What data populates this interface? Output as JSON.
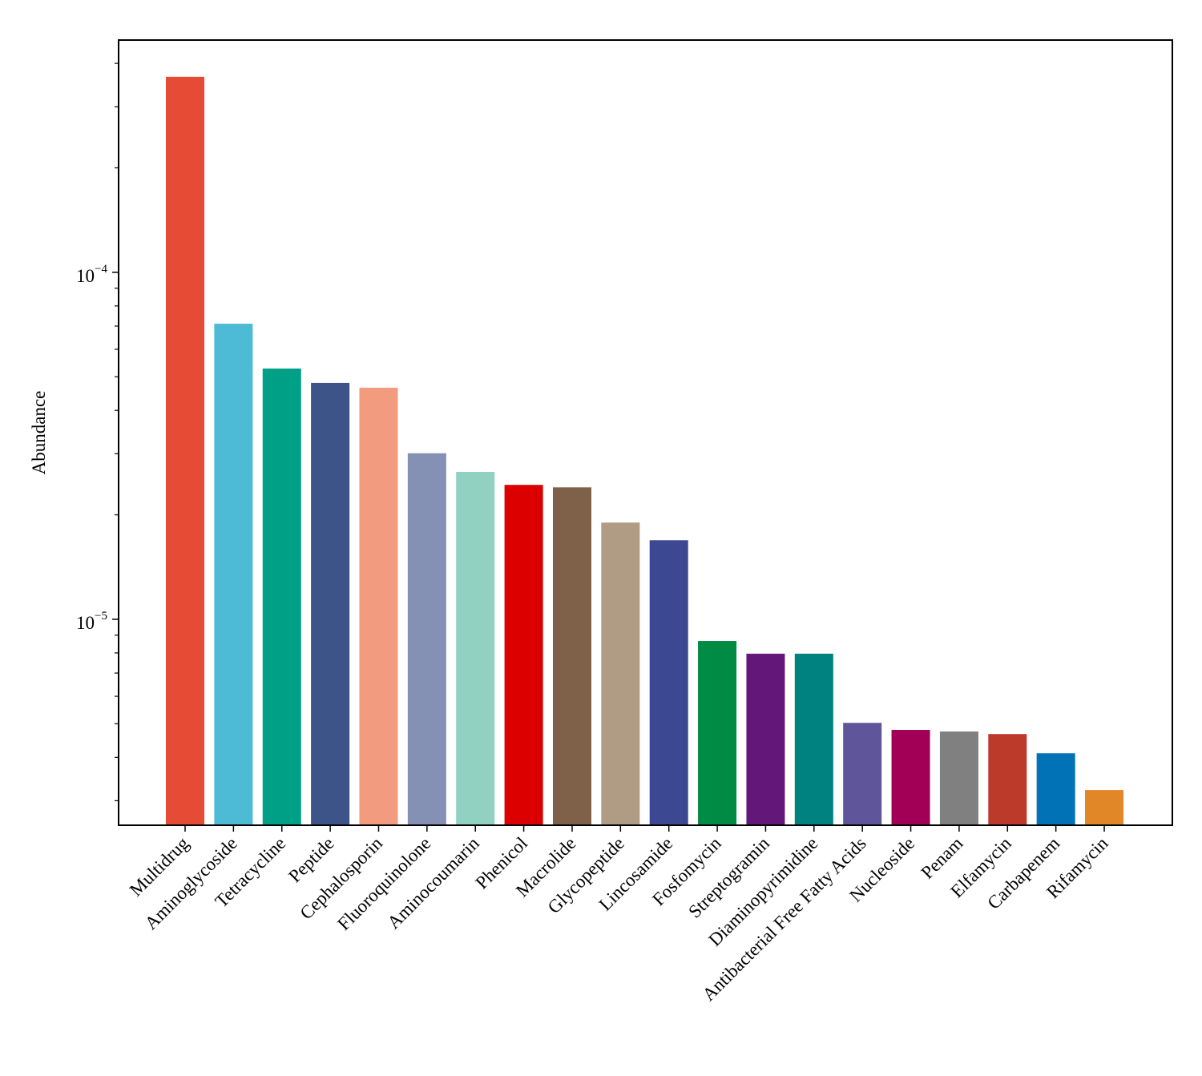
{
  "chart_data": {
    "type": "bar",
    "title": "",
    "xlabel": "",
    "ylabel": "Abundance",
    "yscale": "log",
    "ylim": [
      2.55e-06,
      0.000467
    ],
    "yticks": [
      {
        "value": 1e-05,
        "label": "10",
        "exp": "−5"
      },
      {
        "value": 0.0001,
        "label": "10",
        "exp": "−4"
      }
    ],
    "grid": false,
    "legend": "none",
    "categories": [
      "Multidrug",
      "Aminoglycoside",
      "Tetracycline",
      "Peptide",
      "Cephalosporin",
      "Fluoroquinolone",
      "Aminocoumarin",
      "Phenicol",
      "Macrolide",
      "Glycopeptide",
      "Lincosamide",
      "Fosfomycin",
      "Streptogramin",
      "Diaminopyrimidine",
      "Antibacterial Free Fatty Acids",
      "Nucleoside",
      "Penam",
      "Elfamycin",
      "Carbapenem",
      "Rifamycin"
    ],
    "values": [
      0.000366,
      7.11e-05,
      5.28e-05,
      4.8e-05,
      4.65e-05,
      3.01e-05,
      2.66e-05,
      2.44e-05,
      2.4e-05,
      1.9e-05,
      1.69e-05,
      8.66e-06,
      7.96e-06,
      7.96e-06,
      5.03e-06,
      4.8e-06,
      4.75e-06,
      4.67e-06,
      4.11e-06,
      3.22e-06
    ],
    "colors": [
      "#e64b35",
      "#4dbbd5",
      "#00a087",
      "#3c5488",
      "#f39b7f",
      "#8491b4",
      "#91d1c2",
      "#dc0000",
      "#7e6148",
      "#b09c85",
      "#3c4891",
      "#008b45",
      "#631879",
      "#008280",
      "#5f559b",
      "#a20056",
      "#808080",
      "#bb3a2a",
      "#0072b5",
      "#e18727"
    ]
  }
}
